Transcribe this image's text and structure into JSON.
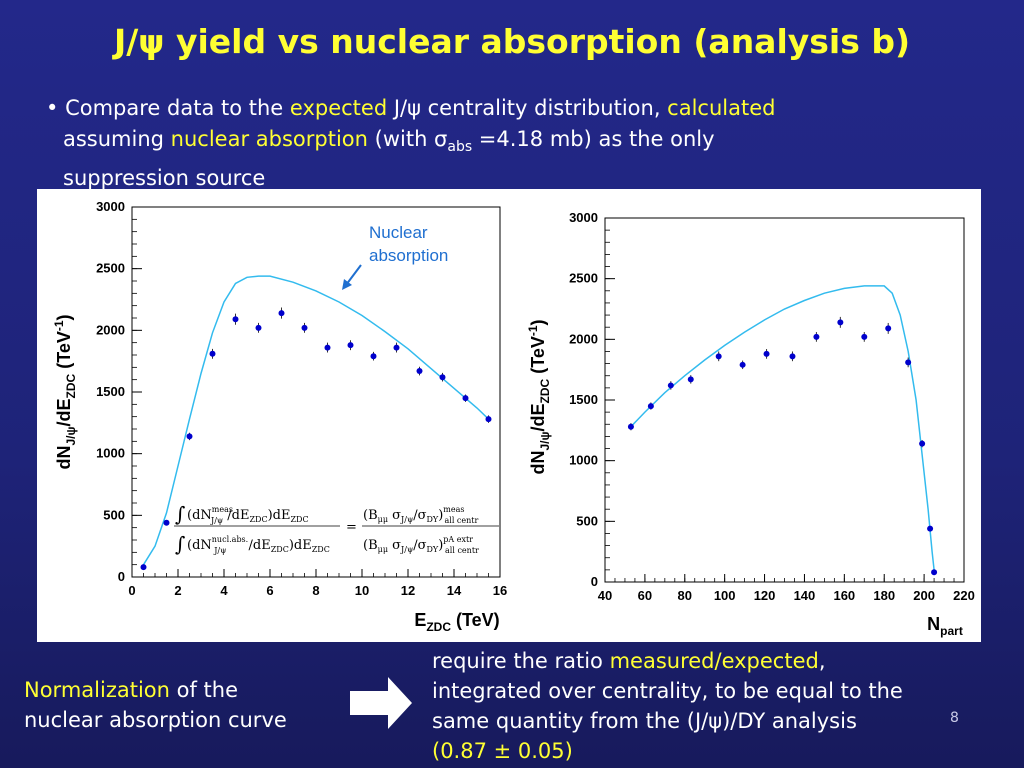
{
  "slide": {
    "title": "J/ψ yield vs nuclear absorption (analysis b)",
    "bullet": {
      "marker": "•",
      "t1": "Compare data to the ",
      "t2": "expected",
      "t3": " J/ψ centrality distribution, ",
      "t4": "calculated",
      "t5": "assuming  ",
      "t6": "nuclear absorption",
      "t7": " (with σ",
      "t8": "abs",
      "t9": " =4.18 mb) as the only",
      "t10": "suppression source"
    },
    "normalization": {
      "a": "Normalization",
      "b": " of the",
      "c": "nuclear absorption curve"
    },
    "ratio_text": {
      "l1a": "require the ratio ",
      "l1b": "measured/expected",
      "l1c": ",",
      "l2": "integrated over centrality, to be equal to the",
      "l3": "same quantity from the (J/ψ)/DY analysis",
      "l4": "(0.87 ± 0.05)"
    },
    "page_number": "8",
    "colors": {
      "title": "#ffff33",
      "highlight": "#ffff33",
      "data_points": "#0000cc",
      "curve": "#33bbee",
      "annotation": "#1f6fd0"
    }
  },
  "chart_data": [
    {
      "type": "scatter",
      "xlabel": "E_ZDC (TeV)",
      "ylabel": "dN_J/ψ/dE_ZDC (TeV^-1)",
      "xlim": [
        0,
        16
      ],
      "ylim": [
        0,
        3000
      ],
      "xticks": [
        "0",
        "2",
        "4",
        "6",
        "8",
        "10",
        "12",
        "14",
        "16"
      ],
      "yticks": [
        "0",
        "500",
        "1000",
        "1500",
        "2000",
        "2500",
        "3000"
      ],
      "series": [
        {
          "x": [
            0.5,
            1.5,
            2.5,
            3.5,
            4.5,
            5.5,
            6.5,
            7.5,
            8.5,
            9.5,
            10.5,
            11.5,
            12.5,
            13.5,
            14.5,
            15.5
          ],
          "y": [
            80,
            440,
            1140,
            1810,
            2090,
            2020,
            2140,
            2020,
            1860,
            1880,
            1790,
            1860,
            1670,
            1620,
            1450,
            1280
          ],
          "err": [
            10,
            15,
            30,
            40,
            45,
            40,
            45,
            40,
            40,
            40,
            35,
            40,
            35,
            35,
            30,
            30
          ]
        },
        {
          "x": [
            0.5,
            1,
            1.5,
            2,
            2.5,
            3,
            3.5,
            4,
            4.5,
            5,
            5.5,
            6,
            7,
            8,
            9,
            10,
            11,
            12,
            13,
            14,
            15,
            15.5
          ],
          "y": [
            100,
            250,
            520,
            900,
            1280,
            1650,
            1980,
            2230,
            2380,
            2430,
            2440,
            2440,
            2390,
            2320,
            2230,
            2120,
            1990,
            1850,
            1690,
            1530,
            1370,
            1280
          ]
        }
      ],
      "annotation": "Nuclear absorption",
      "formula": {
        "num_sup": "meas",
        "num_sub": "J/ψ",
        "den_sup": "nucl.abs.",
        "den_sub": "J/ψ",
        "r_num_sup": "meas",
        "r_num_sub": "all centr",
        "r_den_sup": "pA extr",
        "r_den_sub": "all centr"
      }
    },
    {
      "type": "scatter",
      "xlabel": "N_part",
      "ylabel": "dN_J/ψ/dE_ZDC (TeV^-1)",
      "xlim": [
        40,
        220
      ],
      "ylim": [
        0,
        3000
      ],
      "xticks": [
        "40",
        "60",
        "80",
        "100",
        "120",
        "140",
        "160",
        "180",
        "200",
        "220"
      ],
      "yticks": [
        "0",
        "500",
        "1000",
        "1500",
        "2000",
        "2500",
        "3000"
      ],
      "series": [
        {
          "x": [
            53,
            63,
            73,
            83,
            97,
            109,
            121,
            134,
            146,
            158,
            170,
            182,
            192,
            199,
            203,
            205
          ],
          "y": [
            1280,
            1450,
            1620,
            1670,
            1860,
            1790,
            1880,
            1860,
            2020,
            2140,
            2020,
            2090,
            1810,
            1140,
            440,
            80
          ],
          "err": [
            30,
            30,
            35,
            35,
            40,
            35,
            40,
            40,
            40,
            45,
            40,
            45,
            40,
            30,
            15,
            10
          ]
        },
        {
          "x": [
            53,
            60,
            70,
            80,
            90,
            100,
            110,
            120,
            130,
            140,
            150,
            160,
            170,
            180,
            184,
            188,
            192,
            196,
            199,
            202,
            204,
            205
          ],
          "y": [
            1280,
            1400,
            1560,
            1700,
            1830,
            1950,
            2060,
            2160,
            2250,
            2320,
            2380,
            2420,
            2440,
            2440,
            2380,
            2200,
            1900,
            1500,
            1050,
            600,
            250,
            100
          ]
        }
      ]
    }
  ]
}
